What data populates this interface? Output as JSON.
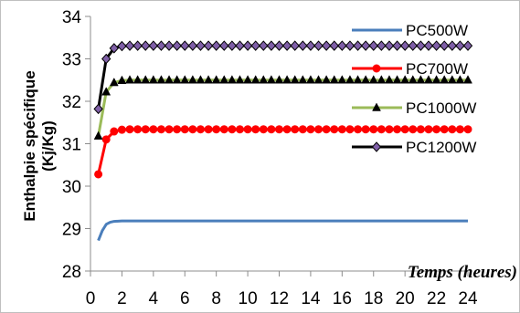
{
  "chart_data": {
    "type": "line",
    "title": "",
    "xlabel": "Temps (heures)",
    "ylabel_line1": "Enthalpie spécifique",
    "ylabel_line2": "(Kj/Kg)",
    "xlim": [
      0,
      24
    ],
    "ylim": [
      28,
      34
    ],
    "xticks": [
      "0",
      "2",
      "4",
      "6",
      "8",
      "10",
      "12",
      "14",
      "16",
      "18",
      "20",
      "22",
      "24"
    ],
    "yticks": [
      "28",
      "29",
      "30",
      "31",
      "32",
      "33",
      "34"
    ],
    "grid": false,
    "legend_position": "right",
    "series": [
      {
        "name": "PC500W",
        "color": "#4a7ebb",
        "marker": "none",
        "x": [
          0.5,
          0.75,
          1,
          1.25,
          1.5,
          2,
          3,
          4,
          6,
          8,
          10,
          12,
          14,
          16,
          18,
          20,
          22,
          24
        ],
        "y": [
          28.72,
          28.95,
          29.1,
          29.15,
          29.17,
          29.18,
          29.18,
          29.18,
          29.18,
          29.18,
          29.18,
          29.18,
          29.18,
          29.18,
          29.18,
          29.18,
          29.18,
          29.18
        ]
      },
      {
        "name": "PC700W",
        "color": "#ff0000",
        "marker": "circle",
        "x": [
          0.5,
          1,
          1.5,
          2,
          2.5,
          3,
          3.5,
          4,
          4.5,
          5,
          5.5,
          6,
          6.5,
          7,
          7.5,
          8,
          8.5,
          9,
          9.5,
          10,
          10.5,
          11,
          11.5,
          12,
          12.5,
          13,
          13.5,
          14,
          14.5,
          15,
          15.5,
          16,
          16.5,
          17,
          17.5,
          18,
          18.5,
          19,
          19.5,
          20,
          20.5,
          21,
          21.5,
          22,
          22.5,
          23,
          23.5,
          24
        ],
        "y": [
          30.28,
          31.1,
          31.29,
          31.33,
          31.34,
          31.34,
          31.34,
          31.34,
          31.34,
          31.34,
          31.34,
          31.34,
          31.34,
          31.34,
          31.34,
          31.34,
          31.34,
          31.34,
          31.34,
          31.34,
          31.34,
          31.34,
          31.34,
          31.34,
          31.34,
          31.34,
          31.34,
          31.34,
          31.34,
          31.34,
          31.34,
          31.34,
          31.34,
          31.34,
          31.34,
          31.34,
          31.34,
          31.34,
          31.34,
          31.34,
          31.34,
          31.34,
          31.34,
          31.34,
          31.34,
          31.34,
          31.34,
          31.34
        ]
      },
      {
        "name": "PC1000W",
        "color": "#9bbb59",
        "marker": "triangle",
        "x": [
          0.5,
          1,
          1.5,
          2,
          2.5,
          3,
          3.5,
          4,
          4.5,
          5,
          5.5,
          6,
          6.5,
          7,
          7.5,
          8,
          8.5,
          9,
          9.5,
          10,
          10.5,
          11,
          11.5,
          12,
          12.5,
          13,
          13.5,
          14,
          14.5,
          15,
          15.5,
          16,
          16.5,
          17,
          17.5,
          18,
          18.5,
          19,
          19.5,
          20,
          20.5,
          21,
          21.5,
          22,
          22.5,
          23,
          23.5,
          24
        ],
        "y": [
          31.18,
          32.22,
          32.44,
          32.49,
          32.5,
          32.5,
          32.5,
          32.5,
          32.5,
          32.5,
          32.5,
          32.5,
          32.5,
          32.5,
          32.5,
          32.5,
          32.5,
          32.5,
          32.5,
          32.5,
          32.5,
          32.5,
          32.5,
          32.5,
          32.5,
          32.5,
          32.5,
          32.5,
          32.5,
          32.5,
          32.5,
          32.5,
          32.5,
          32.5,
          32.5,
          32.5,
          32.5,
          32.5,
          32.5,
          32.5,
          32.5,
          32.5,
          32.5,
          32.5,
          32.5,
          32.5,
          32.5,
          32.5
        ]
      },
      {
        "name": "PC1200W",
        "color": "#000000",
        "marker_fill": "#7f5fa7",
        "marker": "diamond",
        "x": [
          0.5,
          1,
          1.5,
          2,
          2.5,
          3,
          3.5,
          4,
          4.5,
          5,
          5.5,
          6,
          6.5,
          7,
          7.5,
          8,
          8.5,
          9,
          9.5,
          10,
          10.5,
          11,
          11.5,
          12,
          12.5,
          13,
          13.5,
          14,
          14.5,
          15,
          15.5,
          16,
          16.5,
          17,
          17.5,
          18,
          18.5,
          19,
          19.5,
          20,
          20.5,
          21,
          21.5,
          22,
          22.5,
          23,
          23.5,
          24
        ],
        "y": [
          31.82,
          33.0,
          33.25,
          33.3,
          33.31,
          33.31,
          33.31,
          33.31,
          33.31,
          33.31,
          33.31,
          33.31,
          33.31,
          33.31,
          33.31,
          33.31,
          33.31,
          33.31,
          33.31,
          33.31,
          33.31,
          33.31,
          33.31,
          33.31,
          33.31,
          33.31,
          33.31,
          33.31,
          33.31,
          33.31,
          33.31,
          33.31,
          33.31,
          33.31,
          33.31,
          33.31,
          33.31,
          33.31,
          33.31,
          33.31,
          33.31,
          33.31,
          33.31,
          33.31,
          33.31,
          33.31,
          33.31,
          33.31
        ]
      }
    ]
  }
}
